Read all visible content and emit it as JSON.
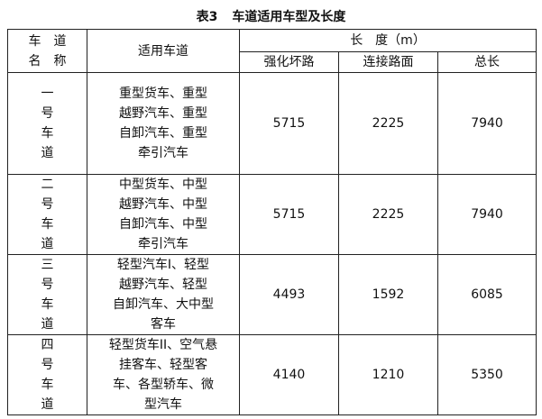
{
  "title": {
    "label": "表3",
    "text": "车道适用车型及长度"
  },
  "header": {
    "lane_name": "车　道\n名　称",
    "lane_name_l1": "车　道",
    "lane_name_l2": "名　称",
    "vehicles": "适用车道",
    "length": "长　度（m）",
    "reinforced": "强化坏路",
    "connecting": "连接路面",
    "total": "总长"
  },
  "rows": [
    {
      "name": "一号车道",
      "vehicles": "重型货车、重型越野汽车、重型自卸汽车、重型牵引汽车",
      "lines": [
        "重型货车、重型",
        "越野汽车、重型",
        "自卸汽车、重型",
        "牵引汽车"
      ],
      "reinforced": "5715",
      "connecting": "2225",
      "total": "7940"
    },
    {
      "name": "二号车道",
      "lines": [
        "中型货车、中型",
        "越野汽车、中型",
        "自卸汽车、中型",
        "牵引汽车"
      ],
      "reinforced": "5715",
      "connecting": "2225",
      "total": "7940"
    },
    {
      "name": "三号车道",
      "lines": [
        "轻型汽车I、轻型",
        "越野汽车、轻型",
        "自卸汽车、大中型",
        "客车"
      ],
      "reinforced": "4493",
      "connecting": "1592",
      "total": "6085"
    },
    {
      "name": "四号车道",
      "lines": [
        "轻型货车II、空气悬",
        "挂客车、轻型客",
        "车、各型轿车、微",
        "型汽车"
      ],
      "reinforced": "4140",
      "connecting": "1210",
      "total": "5350"
    }
  ]
}
